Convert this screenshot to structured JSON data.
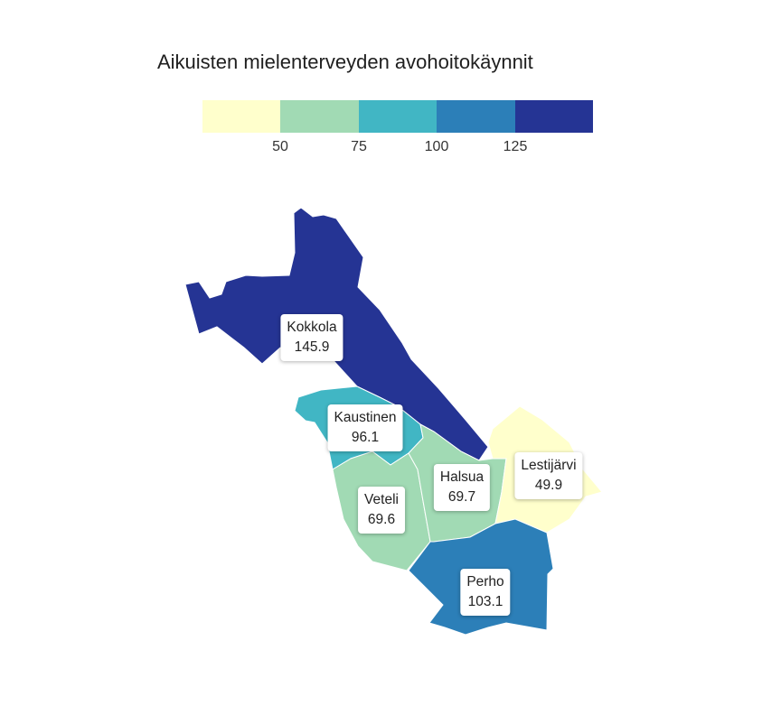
{
  "title": "Aikuisten mielenterveyden avohoitokäynnit",
  "legend": {
    "colors": [
      "#ffffcc",
      "#a1dab4",
      "#41b6c4",
      "#2c7fb8",
      "#253494"
    ],
    "breaks": [
      "50",
      "75",
      "100",
      "125"
    ]
  },
  "regions": [
    {
      "name": "Kokkola",
      "value": "145.9",
      "color": "#253494"
    },
    {
      "name": "Kaustinen",
      "value": "96.1",
      "color": "#41b6c4"
    },
    {
      "name": "Veteli",
      "value": "69.6",
      "color": "#a1dab4"
    },
    {
      "name": "Halsua",
      "value": "69.7",
      "color": "#a1dab4"
    },
    {
      "name": "Lestijärvi",
      "value": "49.9",
      "color": "#ffffcc"
    },
    {
      "name": "Perho",
      "value": "103.1",
      "color": "#2c7fb8"
    }
  ]
}
